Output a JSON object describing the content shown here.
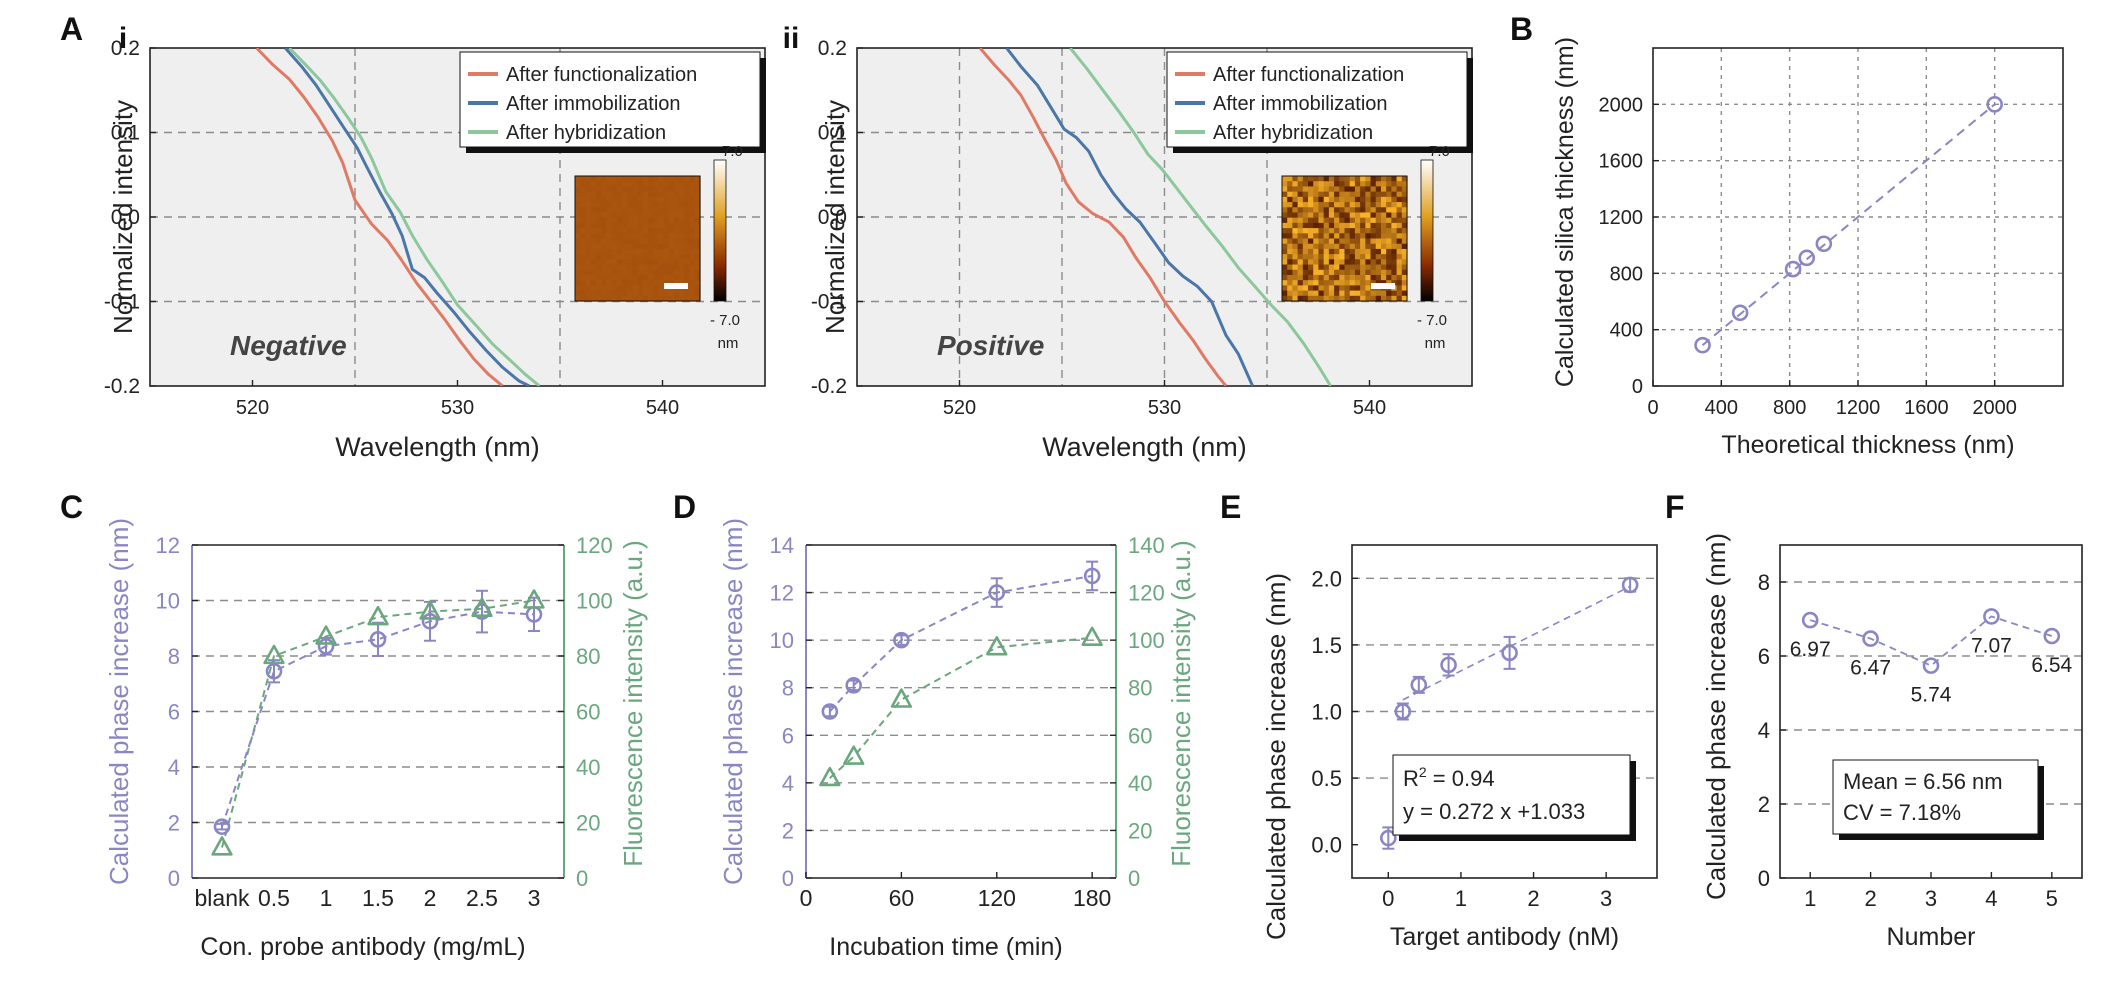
{
  "colors": {
    "functionalization": "#e07a64",
    "immobilization": "#4a76a8",
    "hybridization": "#8cc89b",
    "purple": "#8a86c4",
    "green": "#6aa77e",
    "plot_bg_A": "#efefef",
    "grid": "#8c8c8c"
  },
  "chart_data": [
    {
      "id": "Ai",
      "panel": "A",
      "sub": "i",
      "type": "line",
      "xlabel": "Wavelength (nm)",
      "ylabel": "Normalized intensity",
      "xlim": [
        515,
        545
      ],
      "ylim": [
        -0.2,
        0.2
      ],
      "xticks": [
        520,
        530,
        540
      ],
      "xtick_labels": [
        "520",
        "530",
        "540"
      ],
      "yticks": [
        -0.2,
        -0.1,
        0.0,
        0.1,
        0.2
      ],
      "ytick_labels": [
        "-0.2",
        "-0.1",
        "0.0",
        "0.1",
        "0.2"
      ],
      "vgrid": [
        525,
        535
      ],
      "hgrid": [
        -0.1,
        0.0,
        0.1
      ],
      "annotation": "Negative",
      "legend": [
        "After functionalization",
        "After immobilization",
        "After hybridization"
      ],
      "inset": {
        "top": "7.0",
        "bottom": "- 7.0",
        "unit": "nm",
        "style": "smooth"
      },
      "series": [
        {
          "name": "After functionalization",
          "color_key": "functionalization",
          "x": [
            520.2,
            521.0,
            521.8,
            522.5,
            523.2,
            523.9,
            524.4,
            525.0,
            525.8,
            526.6,
            527.3,
            528.0,
            528.7,
            529.4,
            530.1,
            530.8,
            531.5,
            532.2
          ],
          "y": [
            0.2,
            0.18,
            0.163,
            0.142,
            0.118,
            0.09,
            0.064,
            0.02,
            -0.008,
            -0.028,
            -0.052,
            -0.078,
            -0.1,
            -0.122,
            -0.146,
            -0.168,
            -0.186,
            -0.2
          ]
        },
        {
          "name": "After immobilization",
          "color_key": "immobilization",
          "x": [
            521.6,
            522.4,
            523.1,
            523.8,
            524.5,
            525.1,
            525.6,
            526.2,
            526.8,
            527.3,
            527.8,
            528.4,
            529.0,
            529.8,
            530.6,
            531.4,
            532.2,
            533.0,
            533.5
          ],
          "y": [
            0.2,
            0.178,
            0.156,
            0.13,
            0.104,
            0.082,
            0.058,
            0.03,
            0.004,
            -0.022,
            -0.062,
            -0.072,
            -0.09,
            -0.112,
            -0.136,
            -0.158,
            -0.178,
            -0.194,
            -0.2
          ]
        },
        {
          "name": "After hybridization",
          "color_key": "hybridization",
          "x": [
            521.8,
            522.6,
            523.3,
            524.0,
            524.7,
            525.3,
            525.8,
            526.5,
            527.2,
            527.8,
            528.5,
            529.3,
            530.0,
            530.9,
            531.7,
            532.5,
            533.3,
            534.0
          ],
          "y": [
            0.2,
            0.18,
            0.162,
            0.14,
            0.116,
            0.094,
            0.07,
            0.03,
            0.006,
            -0.022,
            -0.05,
            -0.078,
            -0.104,
            -0.128,
            -0.15,
            -0.168,
            -0.186,
            -0.2
          ]
        }
      ]
    },
    {
      "id": "Aii",
      "panel": "",
      "sub": "ii",
      "type": "line",
      "xlabel": "Wavelength (nm)",
      "ylabel": "Normalized intensity",
      "xlim": [
        515,
        545
      ],
      "ylim": [
        -0.2,
        0.2
      ],
      "xticks": [
        520,
        530,
        540
      ],
      "xtick_labels": [
        "520",
        "530",
        "540"
      ],
      "yticks": [
        -0.2,
        -0.1,
        0.0,
        0.1,
        0.2
      ],
      "ytick_labels": [
        "-0.2",
        "-0.1",
        "0.0",
        "0.1",
        "0.2"
      ],
      "vgrid": [
        520,
        525,
        530,
        535
      ],
      "hgrid": [
        -0.1,
        0.0,
        0.1
      ],
      "annotation": "Positive",
      "legend": [
        "After functionalization",
        "After immobilization",
        "After hybridization"
      ],
      "inset": {
        "top": "7.0",
        "bottom": "- 7.0",
        "unit": "nm",
        "style": "rough"
      },
      "series": [
        {
          "name": "After functionalization",
          "color_key": "functionalization",
          "x": [
            521.0,
            521.7,
            522.4,
            523.0,
            523.6,
            524.2,
            524.7,
            525.2,
            525.8,
            526.5,
            527.3,
            528.0,
            528.6,
            529.3,
            530.0,
            530.7,
            531.4,
            532.0,
            532.6,
            533.0
          ],
          "y": [
            0.2,
            0.18,
            0.162,
            0.144,
            0.118,
            0.09,
            0.068,
            0.04,
            0.018,
            0.004,
            -0.006,
            -0.024,
            -0.048,
            -0.072,
            -0.1,
            -0.124,
            -0.146,
            -0.168,
            -0.188,
            -0.2
          ]
        },
        {
          "name": "After immobilization",
          "color_key": "immobilization",
          "x": [
            522.3,
            523.0,
            523.8,
            524.5,
            525.1,
            525.7,
            526.3,
            526.9,
            527.5,
            528.1,
            528.8,
            529.5,
            530.2,
            530.9,
            531.6,
            532.3,
            533.0,
            533.6,
            534.3
          ],
          "y": [
            0.2,
            0.178,
            0.156,
            0.128,
            0.104,
            0.094,
            0.078,
            0.05,
            0.028,
            0.01,
            -0.006,
            -0.03,
            -0.054,
            -0.07,
            -0.082,
            -0.1,
            -0.14,
            -0.162,
            -0.2
          ]
        },
        {
          "name": "After hybridization",
          "color_key": "hybridization",
          "x": [
            525.4,
            526.2,
            527.0,
            527.8,
            528.5,
            529.2,
            529.9,
            530.6,
            531.3,
            532.0,
            532.8,
            533.6,
            534.4,
            535.2,
            536.0,
            536.8,
            537.6,
            538.1
          ],
          "y": [
            0.2,
            0.176,
            0.15,
            0.124,
            0.1,
            0.074,
            0.056,
            0.034,
            0.012,
            -0.01,
            -0.034,
            -0.06,
            -0.082,
            -0.104,
            -0.124,
            -0.15,
            -0.18,
            -0.2
          ]
        }
      ]
    },
    {
      "id": "B",
      "panel": "B",
      "type": "scatter",
      "xlabel": "Theoretical thickness (nm)",
      "ylabel": "Calculated silica thickness (nm)",
      "xlim": [
        0,
        2400
      ],
      "ylim": [
        0,
        2400
      ],
      "xticks": [
        0,
        400,
        800,
        1200,
        1600,
        2000
      ],
      "xtick_labels": [
        "0",
        "400",
        "800",
        "1200",
        "1600",
        "2000"
      ],
      "yticks": [
        0,
        400,
        800,
        1200,
        1600,
        2000
      ],
      "ytick_labels": [
        "0",
        "400",
        "800",
        "1200",
        "1600",
        "2000"
      ],
      "points": {
        "x": [
          290,
          510,
          820,
          900,
          1000,
          2000
        ],
        "y": [
          290,
          520,
          830,
          910,
          1010,
          2000
        ]
      },
      "fit": [
        [
          290,
          290
        ],
        [
          2000,
          2000
        ]
      ]
    },
    {
      "id": "C",
      "panel": "C",
      "type": "line-dual-axis",
      "xlabel": "Con. probe antibody (mg/mL)",
      "ylabel": "Calculated phase increase (nm)",
      "ylabel_right": "Fluorescence intensity (a.u.)",
      "categories": [
        "blank",
        "0.5",
        "1",
        "1.5",
        "2",
        "2.5",
        "3"
      ],
      "ylim": [
        0,
        12
      ],
      "yticks": [
        0,
        2,
        4,
        6,
        8,
        10,
        12
      ],
      "ylim_right": [
        0,
        120
      ],
      "yticks_right": [
        0,
        20,
        40,
        60,
        80,
        100,
        120
      ],
      "hgrid": [
        2,
        4,
        6,
        8,
        10
      ],
      "series": [
        {
          "name": "Calculated phase increase (nm)",
          "marker": "circle",
          "color_key": "purple",
          "values": [
            1.85,
            7.45,
            8.35,
            8.6,
            9.25,
            9.6,
            9.5
          ],
          "errors": [
            0.1,
            0.4,
            0.3,
            0.6,
            0.7,
            0.75,
            0.6
          ]
        },
        {
          "name": "Fluorescence intensity (a.u.)",
          "marker": "triangle",
          "color_key": "green",
          "axis": "right",
          "values": [
            11,
            80,
            87,
            94,
            96,
            97,
            100
          ],
          "errors": [
            0,
            0,
            0,
            0,
            0,
            0,
            0
          ]
        }
      ]
    },
    {
      "id": "D",
      "panel": "D",
      "type": "line-dual-axis",
      "xlabel": "Incubation time (min)",
      "ylabel": "Calculated phase increase (nm)",
      "ylabel_right": "Fluorescence intensity (a.u.)",
      "xlim": [
        0,
        195
      ],
      "xticks": [
        0,
        60,
        120,
        180
      ],
      "xtick_labels": [
        "0",
        "60",
        "120",
        "180"
      ],
      "ylim": [
        0,
        14
      ],
      "yticks": [
        0,
        2,
        4,
        6,
        8,
        10,
        12,
        14
      ],
      "ylim_right": [
        0,
        140
      ],
      "yticks_right": [
        0,
        20,
        40,
        60,
        80,
        100,
        120,
        140
      ],
      "hgrid": [
        2,
        4,
        6,
        8,
        10,
        12
      ],
      "series": [
        {
          "name": "Calculated phase increase (nm)",
          "marker": "circle",
          "color_key": "purple",
          "x": [
            15,
            30,
            60,
            120,
            180
          ],
          "values": [
            7.0,
            8.1,
            10.0,
            12.0,
            12.7
          ],
          "errors": [
            0.2,
            0.2,
            0.2,
            0.6,
            0.6
          ]
        },
        {
          "name": "Fluorescence intensity (a.u.)",
          "marker": "triangle",
          "color_key": "green",
          "axis": "right",
          "x": [
            15,
            30,
            60,
            120,
            180
          ],
          "values": [
            42,
            51,
            75,
            97,
            101
          ],
          "errors": [
            0,
            0,
            0,
            0,
            0
          ]
        }
      ]
    },
    {
      "id": "E",
      "panel": "E",
      "type": "scatter",
      "xlabel": "Target antibody (nM)",
      "ylabel": "Calculated phase increase (nm)",
      "xlim": [
        -0.5,
        3.7
      ],
      "xticks": [
        0,
        1,
        2,
        3
      ],
      "xtick_labels": [
        "0",
        "1",
        "2",
        "3"
      ],
      "ylim": [
        -0.25,
        2.25
      ],
      "yticks": [
        0.0,
        0.5,
        1.0,
        1.5,
        2.0
      ],
      "ytick_labels": [
        "0.0",
        "0.5",
        "1.0",
        "1.5",
        "2.0"
      ],
      "hgrid": [
        0.5,
        1.0,
        1.5,
        2.0
      ],
      "points": {
        "x": [
          0,
          0.2,
          0.42,
          0.83,
          1.67,
          3.33
        ],
        "y": [
          0.05,
          1.0,
          1.2,
          1.35,
          1.44,
          1.95
        ],
        "errors": [
          0.08,
          0.06,
          0.06,
          0.08,
          0.12,
          0.05
        ]
      },
      "fit": [
        [
          0.2,
          1.087
        ],
        [
          3.33,
          1.939
        ]
      ],
      "annotation": {
        "r2_label": "R",
        "r2_exp": "2",
        "r2_value": " = 0.94",
        "equation": "y = 0.272 x +1.033"
      }
    },
    {
      "id": "F",
      "panel": "F",
      "type": "line",
      "xlabel": "Number",
      "ylabel": "Calculated phase increase (nm)",
      "xlim": [
        0.5,
        5.5
      ],
      "xticks": [
        1,
        2,
        3,
        4,
        5
      ],
      "xtick_labels": [
        "1",
        "2",
        "3",
        "4",
        "5"
      ],
      "ylim": [
        0,
        9
      ],
      "yticks": [
        0,
        2,
        4,
        6,
        8
      ],
      "ytick_labels": [
        "0",
        "2",
        "4",
        "6",
        "8"
      ],
      "hgrid": [
        2,
        4,
        6,
        8
      ],
      "points": {
        "x": [
          1,
          2,
          3,
          4,
          5
        ],
        "y": [
          6.97,
          6.47,
          5.74,
          7.07,
          6.54
        ]
      },
      "point_labels": [
        "6.97",
        "6.47",
        "5.74",
        "7.07",
        "6.54"
      ],
      "annotation": {
        "mean": "Mean = 6.56 nm",
        "cv": "CV = 7.18%"
      }
    }
  ]
}
